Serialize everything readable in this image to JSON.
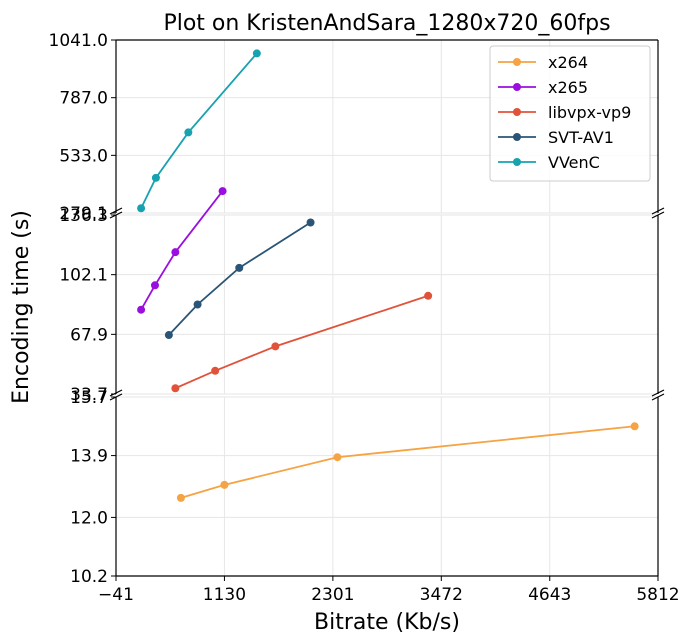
{
  "chart_data": {
    "type": "line",
    "title": "Plot on KristenAndSara_1280x720_60fps",
    "xlabel": "Bitrate (Kb/s)",
    "ylabel": "Encoding time (s)",
    "xlim": [
      -41,
      5812
    ],
    "x_ticks": [
      "-41",
      "1130",
      "2301",
      "3472",
      "4643",
      "5812"
    ],
    "panels": [
      {
        "ylim": [
          279.1,
          1041.0
        ],
        "y_ticks": [
          "279.1",
          "533.0",
          "787.0",
          "1041.0"
        ]
      },
      {
        "ylim": [
          33.7,
          136.3
        ],
        "y_ticks": [
          "33.7",
          "67.9",
          "102.1",
          "136.3"
        ]
      },
      {
        "ylim": [
          10.2,
          15.7
        ],
        "y_ticks": [
          "10.2",
          "12.0",
          "13.9",
          "15.7"
        ]
      }
    ],
    "grid": true,
    "legend_position": "top-right",
    "series": [
      {
        "name": "x264",
        "color": "#f5a343",
        "panel": 2,
        "x": [
          660,
          1130,
          2350,
          5560
        ],
        "y": [
          12.6,
          13.0,
          13.85,
          14.8
        ]
      },
      {
        "name": "x265",
        "color": "#9b0ee0",
        "panel": 1,
        "x": [
          230,
          380,
          600,
          1110
        ],
        "y": [
          82,
          96,
          115,
          150
        ]
      },
      {
        "name": "libvpx-vp9",
        "color": "#e0533a",
        "panel": 1,
        "x": [
          600,
          1030,
          1680,
          3330
        ],
        "y": [
          37,
          47,
          61,
          90
        ]
      },
      {
        "name": "SVT-AV1",
        "color": "#2a5576",
        "panel": 1,
        "x": [
          530,
          840,
          1290,
          2060
        ],
        "y": [
          67.5,
          85,
          106,
          132
        ]
      },
      {
        "name": "VVenC",
        "color": "#17a2b0",
        "panel": 0,
        "x": [
          230,
          390,
          740,
          1480
        ],
        "y": [
          300,
          434,
          634,
          982
        ]
      }
    ]
  }
}
